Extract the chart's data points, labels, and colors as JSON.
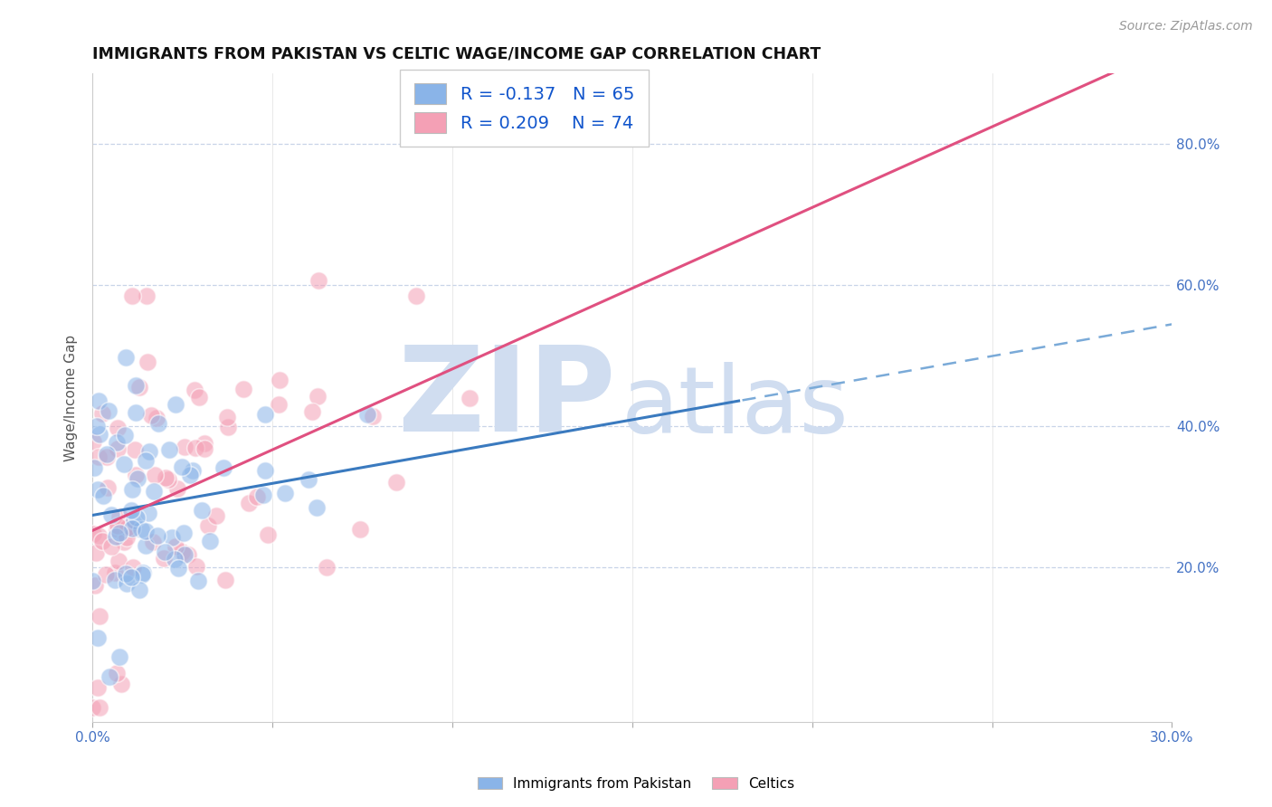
{
  "title": "IMMIGRANTS FROM PAKISTAN VS CELTIC WAGE/INCOME GAP CORRELATION CHART",
  "source": "Source: ZipAtlas.com",
  "ylabel": "Wage/Income Gap",
  "xlim": [
    0.0,
    0.3
  ],
  "ylim": [
    -0.02,
    0.9
  ],
  "xticks": [
    0.0,
    0.05,
    0.1,
    0.15,
    0.2,
    0.25,
    0.3
  ],
  "xtick_labels": [
    "0.0%",
    "",
    "",
    "",
    "",
    "",
    "30.0%"
  ],
  "ytick_labels": [
    "20.0%",
    "40.0%",
    "60.0%",
    "80.0%"
  ],
  "ytick_values": [
    0.2,
    0.4,
    0.6,
    0.8
  ],
  "series1_name": "Immigrants from Pakistan",
  "series1_color": "#8ab4e8",
  "series1_R": -0.137,
  "series1_N": 65,
  "series2_name": "Celtics",
  "series2_color": "#f4a0b5",
  "series2_R": 0.209,
  "series2_N": 74,
  "trend1_solid_color": "#3a7abf",
  "trend2_solid_color": "#e05080",
  "trend1_dash_color": "#7aaad8",
  "background_color": "#ffffff",
  "grid_color": "#c8d4e8",
  "watermark_zip": "ZIP",
  "watermark_atlas": "atlas",
  "watermark_color": "#d0ddf0",
  "scatter_size": 200,
  "scatter_alpha": 0.55,
  "scatter_edge_color": "white",
  "scatter_edge_width": 1.2,
  "trend1_solid_end": 0.18,
  "trend2_solid_end": 0.3
}
